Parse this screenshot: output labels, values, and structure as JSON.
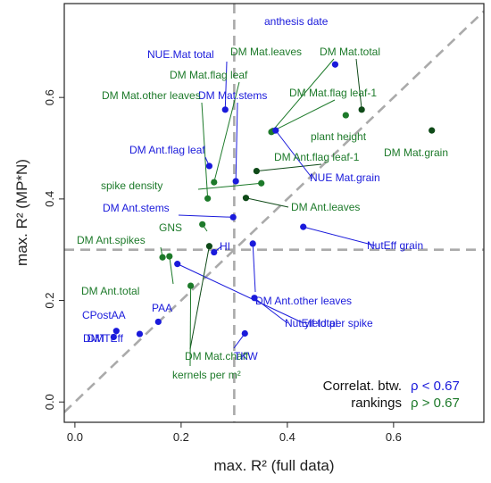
{
  "colors": {
    "blue": "#1a1adb",
    "green": "#1d7a2a",
    "darkgreen": "#0f4a18",
    "ref": "#aaaaaa"
  },
  "chart_data": {
    "type": "scatter",
    "xlabel": "max. R² (full data)",
    "ylabel": "max. R² (MP*N)",
    "xlim": [
      -0.02,
      0.77
    ],
    "ylim": [
      -0.04,
      0.785
    ],
    "xticks": [
      "0.0",
      "0.2",
      "0.4",
      "0.6"
    ],
    "yticks": [
      "0.0",
      "0.2",
      "0.4",
      "0.6"
    ],
    "reference_lines": {
      "vertical_x": 0.3,
      "horizontal_y": 0.3,
      "diagonal": "y = x"
    },
    "legend": {
      "title_line1": "Correlat. btw.",
      "title_line2": "rankings",
      "entries": [
        {
          "label": "ρ < 0.67",
          "color": "blue"
        },
        {
          "label": "ρ > 0.67",
          "color": "green"
        }
      ]
    },
    "points": [
      {
        "label": "anthesis date",
        "x": 0.49,
        "y": 0.665,
        "color": "blue"
      },
      {
        "label": "NUE.Mat total",
        "x": 0.283,
        "y": 0.576,
        "color": "blue"
      },
      {
        "label": "DM Mat.flag leaf",
        "x": 0.262,
        "y": 0.433,
        "color": "green"
      },
      {
        "label": "DM Mat.stems",
        "x": 0.303,
        "y": 0.435,
        "color": "blue"
      },
      {
        "label": "DM Mat.leaves",
        "x": 0.37,
        "y": 0.532,
        "color": "green"
      },
      {
        "label": "DM Mat.total",
        "x": 0.54,
        "y": 0.576,
        "color": "darkgreen"
      },
      {
        "label": "DM Mat.other leaves",
        "x": 0.25,
        "y": 0.401,
        "color": "green"
      },
      {
        "label": "DM Mat.flag leaf-1",
        "x": 0.373,
        "y": 0.534,
        "color": "green"
      },
      {
        "label": "plant height",
        "x": 0.51,
        "y": 0.565,
        "color": "green"
      },
      {
        "label": "DM Mat.grain",
        "x": 0.672,
        "y": 0.535,
        "color": "darkgreen"
      },
      {
        "label": "DM Ant.flag leaf",
        "x": 0.253,
        "y": 0.465,
        "color": "blue"
      },
      {
        "label": "DM Ant.flag leaf-1",
        "x": 0.342,
        "y": 0.455,
        "color": "darkgreen"
      },
      {
        "label": "NUE Mat.grain",
        "x": 0.378,
        "y": 0.535,
        "color": "blue"
      },
      {
        "label": "spike density",
        "x": 0.351,
        "y": 0.431,
        "color": "green"
      },
      {
        "label": "DM Ant.leaves",
        "x": 0.322,
        "y": 0.402,
        "color": "darkgreen"
      },
      {
        "label": "DM Ant.stems",
        "x": 0.298,
        "y": 0.364,
        "color": "blue"
      },
      {
        "label": "GNS",
        "x": 0.24,
        "y": 0.35,
        "color": "green"
      },
      {
        "label": "HI",
        "x": 0.262,
        "y": 0.295,
        "color": "blue"
      },
      {
        "label": "DM Ant.spikes",
        "x": 0.165,
        "y": 0.285,
        "color": "green"
      },
      {
        "label": "NutEff grain",
        "x": 0.43,
        "y": 0.345,
        "color": "blue"
      },
      {
        "label": "DM Ant.other leaves",
        "x": 0.335,
        "y": 0.312,
        "color": "blue"
      },
      {
        "label": "DM Ant.total",
        "x": 0.178,
        "y": 0.287,
        "color": "green"
      },
      {
        "label": "yield per spike",
        "x": 0.193,
        "y": 0.272,
        "color": "blue"
      },
      {
        "label": "DM Mat.chaff",
        "x": 0.253,
        "y": 0.307,
        "color": "darkgreen"
      },
      {
        "label": "kernels per m²",
        "x": 0.218,
        "y": 0.229,
        "color": "green"
      },
      {
        "label": "NutEff total",
        "x": 0.338,
        "y": 0.205,
        "color": "blue"
      },
      {
        "label": "TKW",
        "x": 0.32,
        "y": 0.135,
        "color": "blue"
      },
      {
        "label": "PAA",
        "x": 0.157,
        "y": 0.158,
        "color": "blue"
      },
      {
        "label": "DMTEff",
        "x": 0.122,
        "y": 0.134,
        "color": "blue"
      },
      {
        "label": "CPostAA",
        "x": 0.078,
        "y": 0.14,
        "color": "blue"
      },
      {
        "label": "DMT",
        "x": 0.073,
        "y": 0.128,
        "color": "blue"
      }
    ]
  }
}
